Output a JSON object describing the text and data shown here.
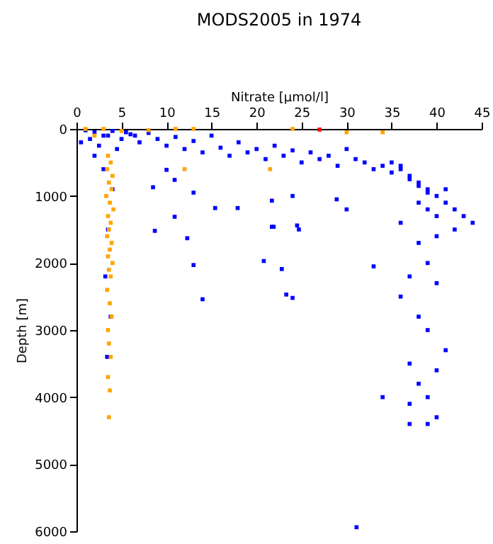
{
  "chart_data": {
    "type": "scatter",
    "title": "MODS2005 in 1974",
    "xlabel": "Nitrate [µmol/l]",
    "ylabel": "Depth [m]",
    "xlim": [
      0,
      45
    ],
    "xticks": [
      0,
      5,
      10,
      15,
      20,
      25,
      30,
      35,
      40,
      45
    ],
    "ylim": [
      6000,
      0
    ],
    "yticks": [
      0,
      1000,
      2000,
      3000,
      4000,
      5000,
      6000
    ],
    "marker": "square",
    "grid": false,
    "series": [
      {
        "color": "#0000ff",
        "x": [
          1,
          2,
          3,
          4,
          5,
          6,
          7,
          8,
          9,
          10,
          11,
          12,
          13,
          14,
          15,
          16,
          17,
          18,
          19,
          20,
          21,
          22,
          23,
          24,
          25,
          26,
          27,
          28,
          29,
          30,
          31,
          32,
          33,
          34,
          35,
          36,
          0.5,
          1.5,
          2.5,
          3.5,
          4.5,
          5.5,
          6.5,
          2,
          3,
          4,
          3.5,
          3.2,
          3.8,
          3.4,
          8.5,
          10,
          10.9,
          13,
          15.4,
          10.9,
          17.9,
          21.7,
          21.7,
          24,
          24.5,
          28.9,
          30,
          8.7,
          12.3,
          13,
          14,
          20.8,
          22.8,
          23.3,
          24,
          21.9,
          24.7,
          33,
          37,
          38,
          39,
          40,
          41,
          42,
          43,
          44,
          38,
          40,
          39,
          41,
          42,
          40,
          36,
          38,
          39,
          37,
          40,
          36,
          38,
          39,
          41,
          37,
          40,
          38,
          39,
          37,
          40,
          39,
          34,
          37,
          31.1,
          35,
          36,
          37,
          38,
          39
        ],
        "values": [
          20,
          50,
          100,
          30,
          150,
          80,
          200,
          60,
          150,
          250,
          120,
          300,
          180,
          350,
          100,
          280,
          400,
          200,
          350,
          300,
          450,
          250,
          400,
          320,
          500,
          350,
          450,
          400,
          550,
          300,
          450,
          500,
          600,
          550,
          650,
          600,
          200,
          150,
          250,
          100,
          300,
          50,
          100,
          400,
          600,
          900,
          1500,
          2200,
          2800,
          3400,
          870,
          610,
          760,
          950,
          1180,
          1310,
          1180,
          1070,
          1460,
          1000,
          1440,
          1050,
          1200,
          1520,
          1630,
          2030,
          2540,
          1970,
          2090,
          2470,
          2520,
          1460,
          1500,
          2050,
          700,
          800,
          900,
          1000,
          1100,
          1200,
          1300,
          1400,
          1100,
          1300,
          1200,
          900,
          1500,
          1600,
          1400,
          1700,
          2000,
          2200,
          2300,
          2500,
          2800,
          3000,
          3300,
          3500,
          3600,
          3800,
          4000,
          4100,
          4300,
          4400,
          4000,
          4400,
          5940,
          500,
          550,
          750,
          850,
          950
        ]
      },
      {
        "color": "#ffa500",
        "x": [
          1,
          2,
          3,
          5,
          8,
          11,
          13,
          24,
          30,
          34,
          12,
          21.5,
          3.5,
          3.8,
          3.4,
          4.0,
          3.6,
          3.9,
          3.3,
          3.7,
          4.1,
          3.5,
          3.8,
          3.6,
          3.4,
          3.9,
          3.7,
          3.5,
          4.0,
          3.6,
          3.8,
          3.4,
          3.7,
          3.9,
          3.5,
          3.6,
          3.8,
          3.5,
          3.7,
          3.6
        ],
        "values": [
          0,
          100,
          0,
          30,
          20,
          0,
          0,
          0,
          50,
          50,
          600,
          600,
          400,
          500,
          600,
          700,
          800,
          900,
          1000,
          1100,
          1200,
          1300,
          1400,
          1500,
          1600,
          1700,
          1800,
          1900,
          2000,
          2100,
          2200,
          2400,
          2600,
          2800,
          3000,
          3200,
          3400,
          3700,
          3900,
          4300
        ]
      },
      {
        "color": "#ff0000",
        "x": [
          27
        ],
        "values": [
          10
        ]
      }
    ]
  }
}
